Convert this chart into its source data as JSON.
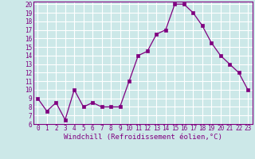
{
  "x": [
    0,
    1,
    2,
    3,
    4,
    5,
    6,
    7,
    8,
    9,
    10,
    11,
    12,
    13,
    14,
    15,
    16,
    17,
    18,
    19,
    20,
    21,
    22,
    23
  ],
  "y": [
    9.0,
    7.5,
    8.5,
    6.5,
    10.0,
    8.0,
    8.5,
    8.0,
    8.0,
    8.0,
    11.0,
    14.0,
    14.5,
    16.5,
    17.0,
    20.0,
    20.0,
    19.0,
    17.5,
    15.5,
    14.0,
    13.0,
    12.0,
    10.0
  ],
  "line_color": "#800080",
  "marker": "s",
  "marker_size": 2.5,
  "xlim_min": -0.5,
  "xlim_max": 23.5,
  "ylim_min": 6,
  "ylim_max": 20.3,
  "yticks": [
    6,
    7,
    8,
    9,
    10,
    11,
    12,
    13,
    14,
    15,
    16,
    17,
    18,
    19,
    20
  ],
  "xticks": [
    0,
    1,
    2,
    3,
    4,
    5,
    6,
    7,
    8,
    9,
    10,
    11,
    12,
    13,
    14,
    15,
    16,
    17,
    18,
    19,
    20,
    21,
    22,
    23
  ],
  "xlabel": "Windchill (Refroidissement éolien,°C)",
  "background_color": "#cce8e8",
  "grid_color": "#ffffff",
  "tick_fontsize": 5.5,
  "label_fontsize": 6.5
}
